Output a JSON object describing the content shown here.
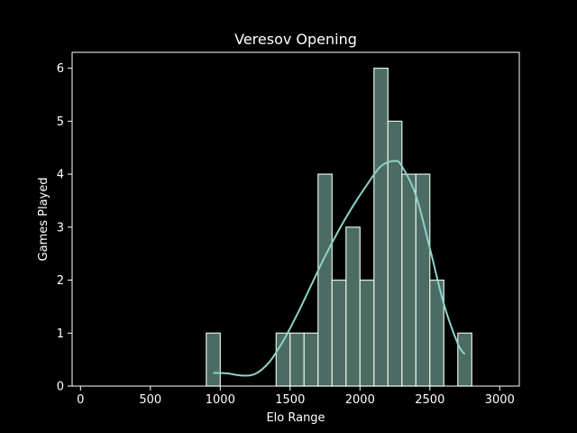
{
  "chart_data": {
    "type": "bar",
    "title": "Veresov Opening",
    "xlabel": "Elo Range",
    "ylabel": "Games Played",
    "xlim": [
      -60,
      3140
    ],
    "ylim": [
      0,
      6.3
    ],
    "xticks": [
      0,
      500,
      1000,
      1500,
      2000,
      2500,
      3000
    ],
    "yticks": [
      0,
      1,
      2,
      3,
      4,
      5,
      6
    ],
    "grid": false,
    "bar_color": "#4c6b62",
    "edge_color": "#e0f2ec",
    "kde_color": "#8dd3c7",
    "bins": [
      {
        "start": 900,
        "end": 1000,
        "count": 1
      },
      {
        "start": 1400,
        "end": 1500,
        "count": 1
      },
      {
        "start": 1500,
        "end": 1600,
        "count": 1
      },
      {
        "start": 1600,
        "end": 1700,
        "count": 1
      },
      {
        "start": 1700,
        "end": 1800,
        "count": 4
      },
      {
        "start": 1800,
        "end": 1900,
        "count": 2
      },
      {
        "start": 1900,
        "end": 2000,
        "count": 3
      },
      {
        "start": 2000,
        "end": 2100,
        "count": 2
      },
      {
        "start": 2100,
        "end": 2200,
        "count": 6
      },
      {
        "start": 2200,
        "end": 2300,
        "count": 5
      },
      {
        "start": 2300,
        "end": 2400,
        "count": 4
      },
      {
        "start": 2400,
        "end": 2500,
        "count": 4
      },
      {
        "start": 2500,
        "end": 2600,
        "count": 2
      },
      {
        "start": 2700,
        "end": 2800,
        "count": 1
      }
    ],
    "kde": {
      "x": [
        950,
        1050,
        1150,
        1250,
        1350,
        1450,
        1550,
        1650,
        1750,
        1850,
        1950,
        2050,
        2150,
        2250,
        2300,
        2400,
        2500,
        2600,
        2700,
        2750
      ],
      "y": [
        0.25,
        0.24,
        0.2,
        0.23,
        0.45,
        0.85,
        1.35,
        1.9,
        2.45,
        2.95,
        3.4,
        3.8,
        4.15,
        4.25,
        4.15,
        3.6,
        2.6,
        1.55,
        0.8,
        0.6
      ]
    }
  }
}
